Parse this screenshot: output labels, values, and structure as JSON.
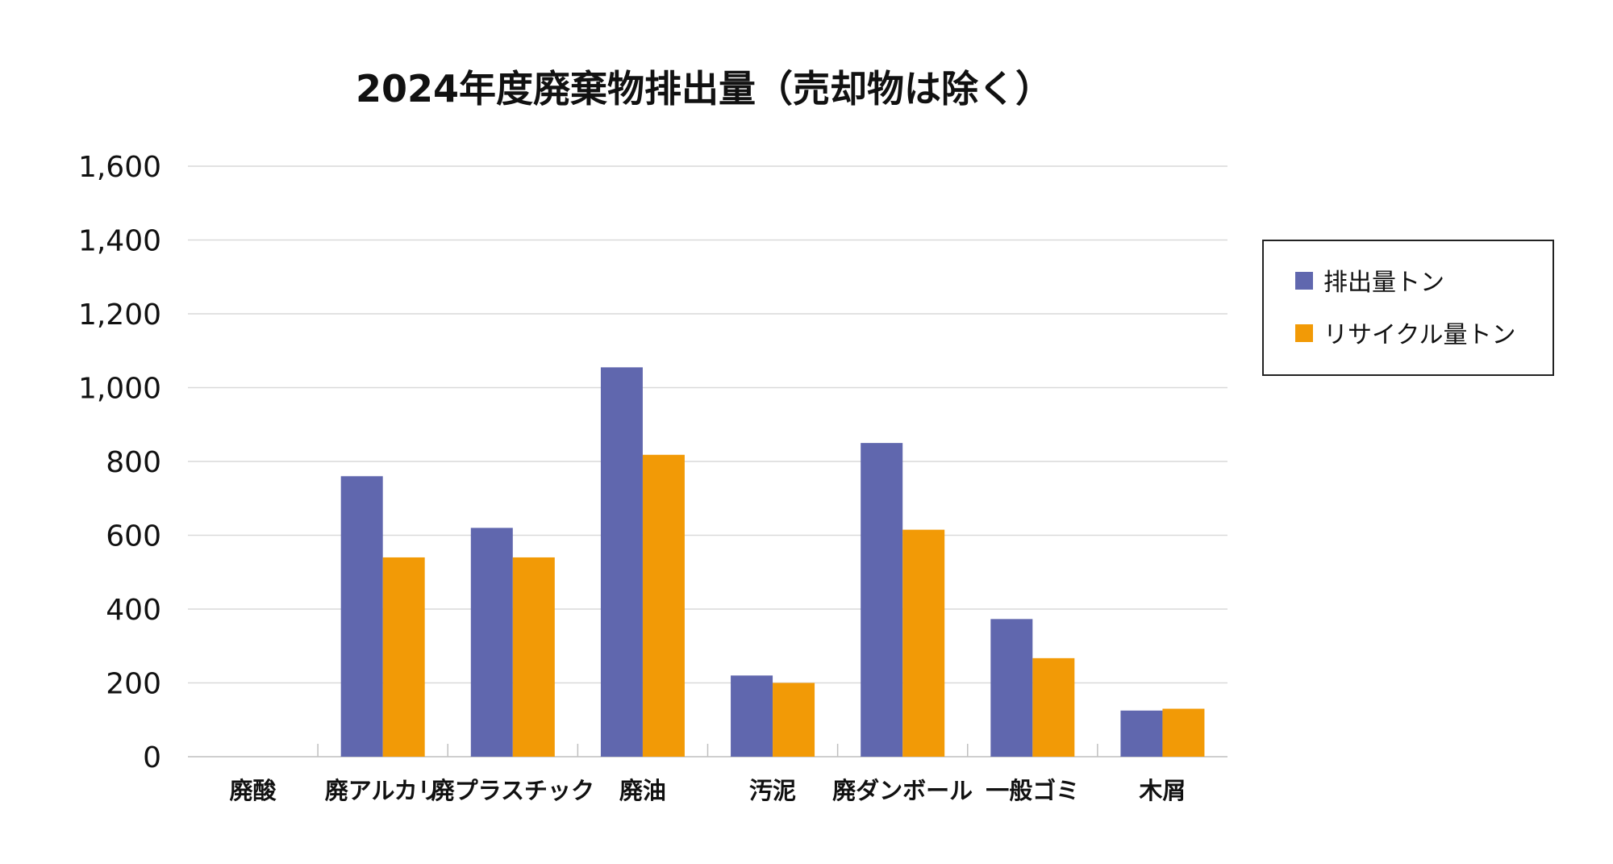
{
  "chart_data": {
    "type": "bar",
    "title": "2024年度廃棄物排出量（売却物は除く）",
    "xlabel": "",
    "ylabel": "",
    "categories": [
      "廃酸",
      "廃アルカリ",
      "廃プラスチック",
      "廃油",
      "汚泥",
      "廃ダンボール",
      "一般ゴミ",
      "木屑"
    ],
    "series": [
      {
        "name": "排出量トン",
        "color": "#6067ae",
        "values": [
          0,
          760,
          620,
          1055,
          220,
          850,
          373,
          125
        ]
      },
      {
        "name": "リサイクル量トン",
        "color": "#f29a06",
        "values": [
          0,
          540,
          540,
          818,
          200,
          615,
          267,
          130
        ]
      }
    ],
    "ylim": [
      0,
      1600
    ],
    "yticks": [
      0,
      200,
      400,
      600,
      800,
      1000,
      1200,
      1400,
      1600
    ],
    "ytick_labels": [
      "0",
      "200",
      "400",
      "600",
      "800",
      "1,000",
      "1,200",
      "1,400",
      "1,600"
    ],
    "grid": true,
    "legend_position": "right"
  }
}
